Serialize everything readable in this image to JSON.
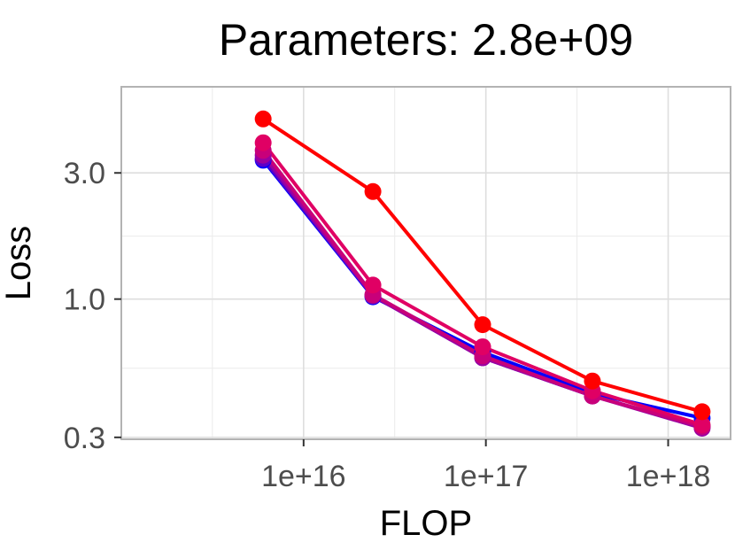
{
  "chart_data": {
    "type": "line",
    "title": "Parameters: 2.8e+09",
    "xlabel": "FLOP",
    "ylabel": "Loss",
    "x_scale": "log",
    "y_scale": "log",
    "xlim": [
      1000000000000000.0,
      2.2e+18
    ],
    "ylim": [
      0.295,
      6.35
    ],
    "x_ticks": [
      1e+16,
      1e+17,
      1e+18
    ],
    "x_tick_labels": [
      "1e+16",
      "1e+17",
      "1e+18"
    ],
    "x_minor_ticks": [
      3160000000000000.0,
      3.16e+16,
      3.16e+17
    ],
    "y_ticks": [
      0.3,
      1.0,
      3.0
    ],
    "y_tick_labels": [
      "0.3",
      "1.0",
      "3.0"
    ],
    "y_minor_ticks": [
      0.548,
      1.73
    ],
    "grid": true,
    "legend": "none",
    "x": [
      6000000000000000.0,
      2.4e+16,
      9.6e+16,
      3.84e+17,
      1.536e+18
    ],
    "series": [
      {
        "color": "#0000ff",
        "values": [
          3.35,
          1.02,
          0.63,
          0.44,
          0.355
        ]
      },
      {
        "color": "#5c00c8",
        "values": [
          3.4,
          1.03,
          0.6,
          0.43,
          0.33
        ]
      },
      {
        "color": "#9b00a0",
        "values": [
          3.5,
          1.03,
          0.6,
          0.43,
          0.325
        ]
      },
      {
        "color": "#c8007a",
        "values": [
          3.65,
          1.04,
          0.61,
          0.43,
          0.33
        ]
      },
      {
        "color": "#e00064",
        "values": [
          3.9,
          1.13,
          0.66,
          0.45,
          0.335
        ]
      },
      {
        "color": "#ff0000",
        "values": [
          4.8,
          2.55,
          0.8,
          0.49,
          0.375
        ]
      }
    ]
  }
}
